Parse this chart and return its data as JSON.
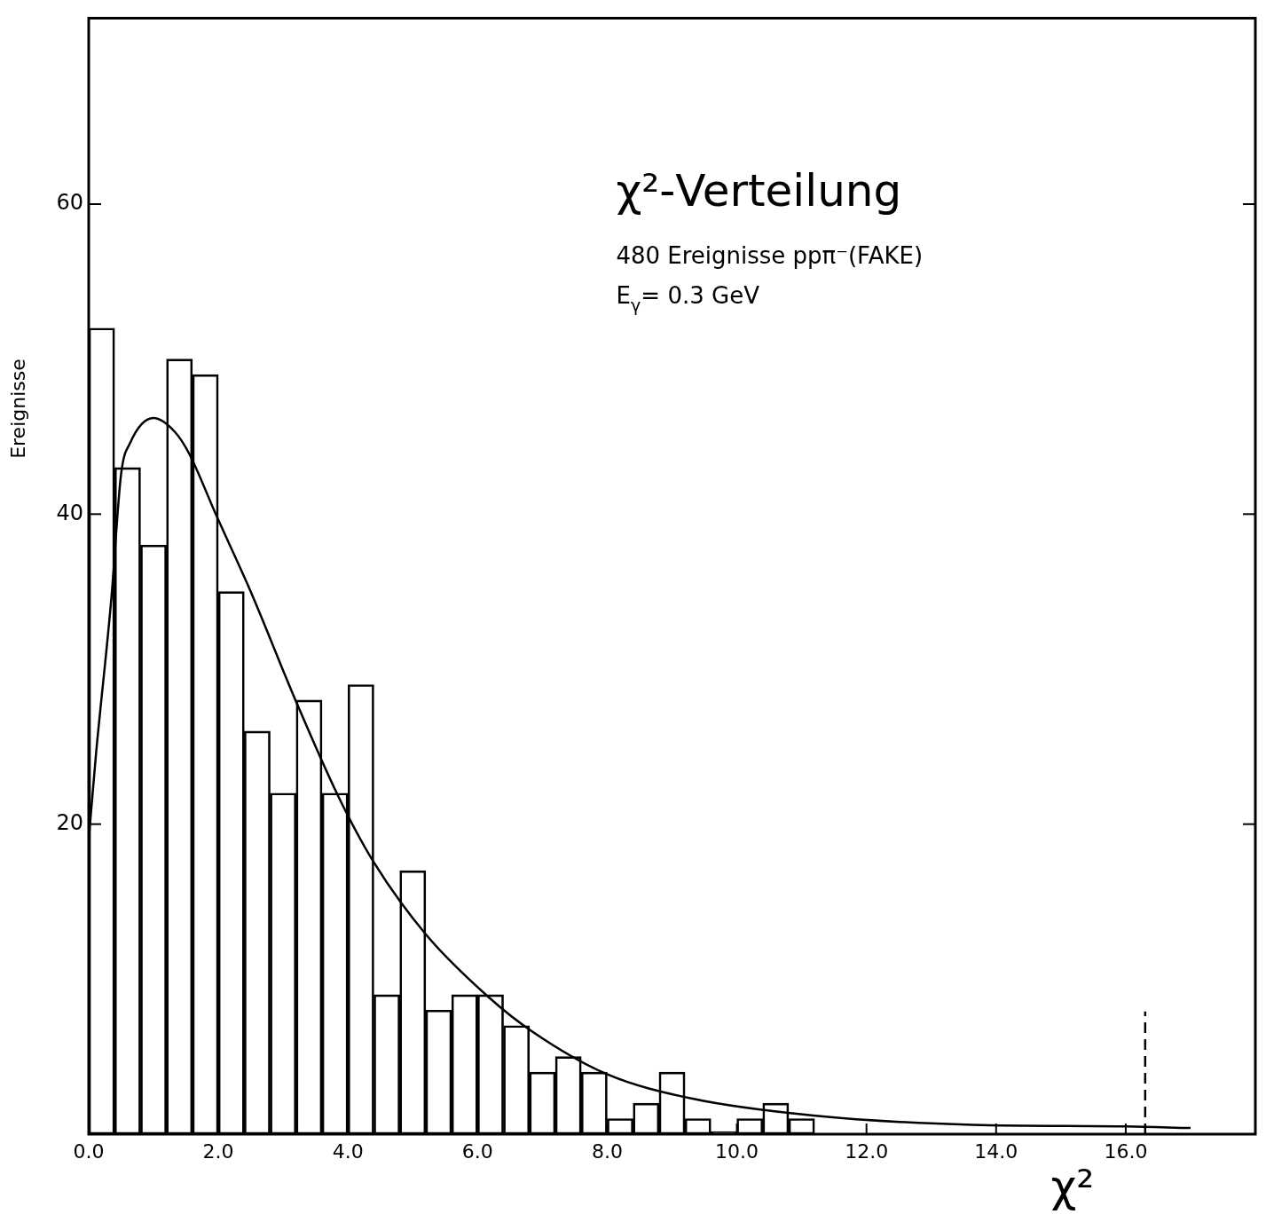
{
  "chart_data": {
    "type": "bar",
    "title": "χ²-Verteilung",
    "xlabel": "χ²",
    "ylabel": "Ereignisse",
    "annotations": [
      "480 Ereignisse ppπ⁻(FAKE)",
      "E$_{γ}$= 0.3 GeV"
    ],
    "series": [
      {
        "color": "#000000",
        "x": [
          0.2,
          0.6,
          1.0,
          1.4,
          1.8,
          2.2,
          2.6,
          3.0,
          3.4,
          3.8,
          4.2,
          4.6,
          5.0,
          5.4,
          5.8,
          6.2,
          6.6,
          7.0,
          7.4,
          7.8,
          8.2,
          8.6,
          9.0,
          9.4,
          9.8,
          10.2,
          10.6,
          11.0
        ],
        "values": [
          52,
          43,
          38,
          50,
          49,
          35,
          26,
          22,
          28,
          22,
          29,
          9,
          17,
          8,
          9,
          9,
          7,
          4,
          5,
          4,
          1,
          2,
          4,
          1,
          0,
          1,
          2,
          1
        ]
      },
      {
        "type": "line",
        "color": "#000000",
        "x": [
          0,
          0.11,
          0.35,
          0.5,
          0.64,
          1.0,
          1.33,
          1.55,
          1.96,
          2.5,
          3.19,
          3.85,
          4.39,
          5.2,
          6.18,
          6.85,
          7.98,
          9.3,
          11.18,
          13.64,
          15.96,
          17.0
        ],
        "values": [
          19,
          24.4,
          34.6,
          42.6,
          44.6,
          46.2,
          45.3,
          43.9,
          40.0,
          35.0,
          28.0,
          21.8,
          17.6,
          12.9,
          8.8,
          6.6,
          3.9,
          2.3,
          1.2,
          0.6,
          0.5,
          0.4
        ]
      }
    ],
    "ref_lines": [
      {
        "axis": "x",
        "value": 16.3,
        "color": "#000000",
        "line_style": "dashed"
      }
    ],
    "xlim": [
      0,
      18
    ],
    "ylim": [
      0,
      72
    ],
    "xticks": [
      {
        "value": 0,
        "label": "0.0"
      },
      {
        "value": 2,
        "label": "2.0"
      },
      {
        "value": 4,
        "label": "4.0"
      },
      {
        "value": 6,
        "label": "6.0"
      },
      {
        "value": 8,
        "label": "8.0"
      },
      {
        "value": 10,
        "label": "10.0"
      },
      {
        "value": 12,
        "label": "12.0"
      },
      {
        "value": 14,
        "label": "14.0"
      },
      {
        "value": 16,
        "label": "16.0"
      }
    ],
    "yticks": [
      20,
      40,
      60
    ],
    "grid": false,
    "legend": false
  }
}
